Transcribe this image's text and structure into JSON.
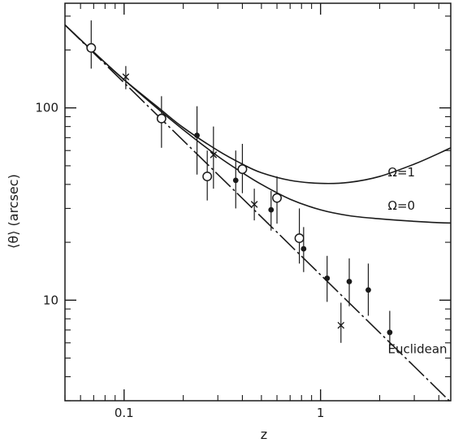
{
  "chart_data": {
    "type": "scatter",
    "xlabel": "z",
    "ylabel": "⟨θ⟩ (arcsec)",
    "xscale": "log",
    "yscale": "log",
    "xlim": [
      0.05,
      4.6
    ],
    "ylim": [
      3,
      350
    ],
    "x_ticks": [
      {
        "value": 0.1,
        "label": "0.1"
      },
      {
        "value": 1,
        "label": "1"
      }
    ],
    "y_ticks": [
      {
        "value": 10,
        "label": "10"
      },
      {
        "value": 100,
        "label": "100"
      }
    ],
    "curves": [
      {
        "name": "Ω=1",
        "style": "solid",
        "label_at": {
          "x": 2.2,
          "y": 44
        },
        "points": [
          [
            0.05,
            270
          ],
          [
            0.07,
            195
          ],
          [
            0.1,
            140
          ],
          [
            0.15,
            100
          ],
          [
            0.2,
            79
          ],
          [
            0.3,
            60
          ],
          [
            0.4,
            51
          ],
          [
            0.5,
            46
          ],
          [
            0.7,
            42
          ],
          [
            1.0,
            40.5
          ],
          [
            1.4,
            41
          ],
          [
            2.0,
            44
          ],
          [
            3.0,
            51
          ],
          [
            4.0,
            58
          ],
          [
            4.6,
            62
          ]
        ]
      },
      {
        "name": "Ω=0",
        "style": "solid",
        "label_at": {
          "x": 2.2,
          "y": 29.5
        },
        "points": [
          [
            0.05,
            270
          ],
          [
            0.07,
            195
          ],
          [
            0.1,
            140
          ],
          [
            0.15,
            98
          ],
          [
            0.2,
            77
          ],
          [
            0.3,
            56
          ],
          [
            0.4,
            46
          ],
          [
            0.5,
            40
          ],
          [
            0.7,
            33.5
          ],
          [
            1.0,
            29.5
          ],
          [
            1.4,
            27.5
          ],
          [
            2.0,
            26.5
          ],
          [
            3.0,
            25.7
          ],
          [
            4.0,
            25.3
          ],
          [
            4.6,
            25.2
          ]
        ]
      },
      {
        "name": "Euclidean",
        "style": "dashdot",
        "label_at": {
          "x": 2.2,
          "y": 5.3
        },
        "points": [
          [
            0.05,
            270
          ],
          [
            4.6,
            2.95
          ]
        ]
      }
    ],
    "series": [
      {
        "marker": "open-circle",
        "points": [
          {
            "x": 0.068,
            "y": 205,
            "ylo": 160,
            "yhi": 285
          },
          {
            "x": 0.155,
            "y": 88,
            "ylo": 62,
            "yhi": 115
          },
          {
            "x": 0.265,
            "y": 44,
            "ylo": 33,
            "yhi": 60
          },
          {
            "x": 0.4,
            "y": 48,
            "ylo": 36,
            "yhi": 65
          },
          {
            "x": 0.6,
            "y": 34,
            "ylo": 25,
            "yhi": 44
          },
          {
            "x": 0.78,
            "y": 21,
            "ylo": 15.5,
            "yhi": 30
          }
        ]
      },
      {
        "marker": "filled-circle",
        "points": [
          {
            "x": 0.235,
            "y": 72,
            "ylo": 45,
            "yhi": 102
          },
          {
            "x": 0.37,
            "y": 42,
            "ylo": 30,
            "yhi": 60
          },
          {
            "x": 0.56,
            "y": 29.5,
            "ylo": 23,
            "yhi": 37
          },
          {
            "x": 0.82,
            "y": 18.5,
            "ylo": 14,
            "yhi": 24
          },
          {
            "x": 1.08,
            "y": 13,
            "ylo": 9.8,
            "yhi": 17
          },
          {
            "x": 1.4,
            "y": 12.5,
            "ylo": 9.3,
            "yhi": 16.5
          },
          {
            "x": 1.75,
            "y": 11.3,
            "ylo": 8.3,
            "yhi": 15.5
          },
          {
            "x": 2.25,
            "y": 6.8,
            "ylo": 5.5,
            "yhi": 8.8
          }
        ]
      },
      {
        "marker": "cross",
        "points": [
          {
            "x": 0.102,
            "y": 145,
            "ylo": 125,
            "yhi": 165
          },
          {
            "x": 0.285,
            "y": 57,
            "ylo": 38,
            "yhi": 80
          },
          {
            "x": 0.46,
            "y": 31.5,
            "ylo": 26,
            "yhi": 38
          },
          {
            "x": 1.27,
            "y": 7.4,
            "ylo": 6.0,
            "yhi": 9.7
          }
        ]
      }
    ],
    "grid": false,
    "legend": "none"
  }
}
